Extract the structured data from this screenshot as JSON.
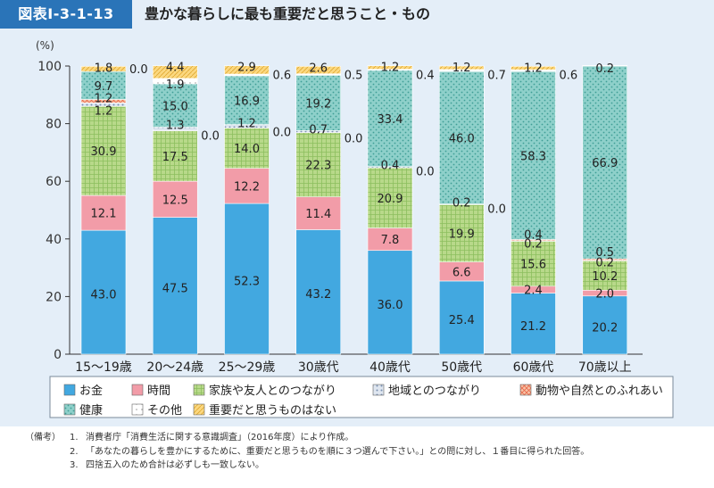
{
  "header": {
    "figure_label": "図表Ⅰ-3-1-13",
    "title": "豊かな暮らしに最も重要だと思うこと・もの"
  },
  "colors": {
    "background": "#e4eef8",
    "label_bg": "#2a74b8",
    "categories": [
      "#42a8e0",
      "#f29ca8",
      "#b8d98a",
      "#c8d2e0",
      "#f4a48c",
      "#8ed0ca",
      "#ffffff",
      "#fbd880"
    ]
  },
  "chart_data": {
    "type": "stacked_bar",
    "title": "豊かな暮らしに最も重要だと思うこと・もの",
    "ylabel": "(%)",
    "ylim": [
      0,
      100
    ],
    "yticks": [
      0,
      20,
      40,
      60,
      80,
      100
    ],
    "categories": [
      "15～19歳",
      "20～24歳",
      "25～29歳",
      "30歳代",
      "40歳代",
      "50歳代",
      "60歳代",
      "70歳以上"
    ],
    "series": [
      {
        "name": "お金",
        "values": [
          43.0,
          47.5,
          52.3,
          43.2,
          36.0,
          25.4,
          21.2,
          20.2
        ]
      },
      {
        "name": "時間",
        "values": [
          12.1,
          12.5,
          12.2,
          11.4,
          7.8,
          6.6,
          2.4,
          2.0
        ]
      },
      {
        "name": "家族や友人とのつながり",
        "values": [
          30.9,
          17.5,
          14.0,
          22.3,
          20.9,
          19.9,
          15.6,
          10.2
        ]
      },
      {
        "name": "地域とのつながり",
        "values": [
          1.2,
          1.3,
          1.2,
          0.7,
          0.4,
          0.2,
          0.2,
          0.2
        ]
      },
      {
        "name": "動物や自然とのふれあい",
        "values": [
          1.2,
          0.0,
          0.0,
          0.0,
          0.0,
          0.0,
          0.4,
          0.5
        ]
      },
      {
        "name": "健康",
        "values": [
          9.7,
          15.0,
          16.9,
          19.2,
          33.4,
          46.0,
          58.3,
          66.9
        ]
      },
      {
        "name": "その他",
        "values": [
          0.0,
          1.9,
          0.6,
          0.5,
          0.4,
          0.7,
          0.6,
          0.2
        ]
      },
      {
        "name": "重要だと思うものはない",
        "values": [
          1.8,
          4.4,
          2.9,
          2.6,
          1.2,
          1.2,
          1.2,
          0.0
        ]
      }
    ],
    "value_labels": [
      [
        "43.0",
        "12.1",
        "30.9",
        "1.2",
        "1.2",
        "9.7",
        "0.0",
        "1.8"
      ],
      [
        "47.5",
        "12.5",
        "17.5",
        "1.3",
        "0.0",
        "15.0",
        "1.9",
        "4.4"
      ],
      [
        "52.3",
        "12.2",
        "14.0",
        "1.2",
        "0.0",
        "16.9",
        "0.6",
        "2.9"
      ],
      [
        "43.2",
        "11.4",
        "22.3",
        "0.7",
        "0.0",
        "19.2",
        "0.5",
        "2.6"
      ],
      [
        "36.0",
        "7.8",
        "20.9",
        "0.4",
        "0.0",
        "33.4",
        "0.4",
        "1.2"
      ],
      [
        "25.4",
        "6.6",
        "19.9",
        "0.2",
        "0.0",
        "46.0",
        "0.7",
        "1.2"
      ],
      [
        "21.2",
        "2.4",
        "15.6",
        "0.2",
        "0.4",
        "58.3",
        "0.6",
        "1.2"
      ],
      [
        "20.2",
        "2.0",
        "10.2",
        "0.2",
        "0.5",
        "66.9",
        "0.2",
        ""
      ]
    ],
    "legend_position": "bottom"
  },
  "notes": {
    "heading": "（備考）",
    "items": [
      {
        "num": "1.",
        "text": "消費者庁「消費生活に関する意識調査」（2016年度）により作成。"
      },
      {
        "num": "2.",
        "text": "「あなたの暮らしを豊かにするために、重要だと思うものを順に３つ選んで下さい。」との問に対し、１番目に得られた回答。"
      },
      {
        "num": "3.",
        "text": "四捨五入のため合計は必ずしも一致しない。"
      }
    ]
  }
}
